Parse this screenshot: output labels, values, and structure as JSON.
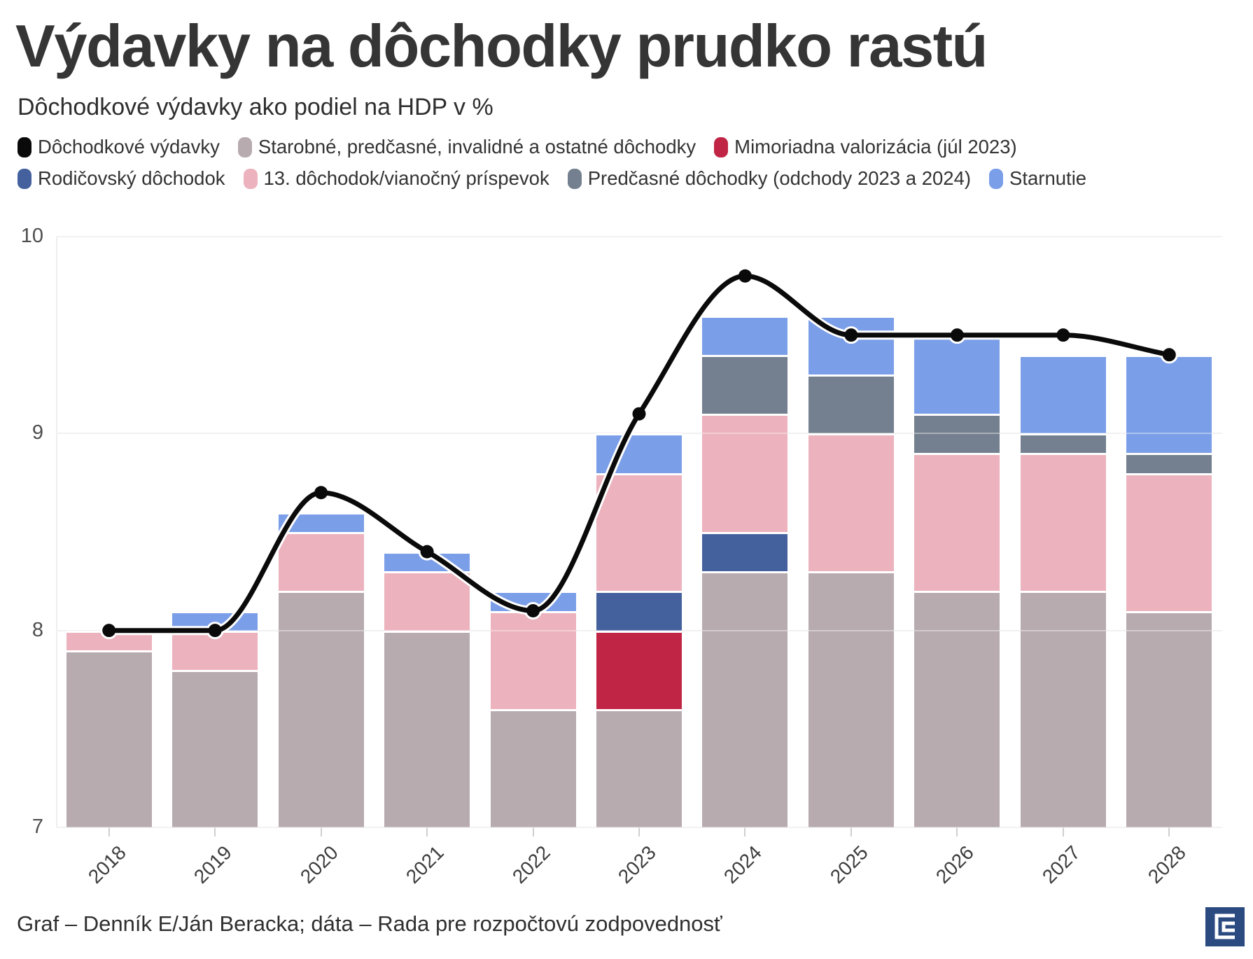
{
  "header": {
    "title": "Výdavky na dôchodky prudko rastú",
    "subtitle": "Dôchodkové výdavky ako podiel na HDP v %"
  },
  "legend": {
    "row1": [
      {
        "label": "Dôchodkové výdavky",
        "color": "#0a0a0a"
      },
      {
        "label": "Starobné, predčasné, invalidné a ostatné dôchodky",
        "color": "#b7abaf"
      },
      {
        "label": "Mimoriadna valorizácia (júl 2023)",
        "color": "#c02545"
      }
    ],
    "row2": [
      {
        "label": "Rodičovský dôchodok",
        "color": "#44619e"
      },
      {
        "label": "13. dôchodok/vianočný príspevok",
        "color": "#ecb2bd"
      },
      {
        "label": "Predčasné dôchodky (odchody 2023 a 2024)",
        "color": "#74808f"
      },
      {
        "label": "Starnutie",
        "color": "#7b9ee8"
      }
    ]
  },
  "chart_data": {
    "type": "bar",
    "subtype": "stacked-bars-with-line-overlay",
    "title": "Výdavky na dôchodky prudko rastú",
    "subtitle": "Dôchodkové výdavky ako podiel na HDP v %",
    "categories": [
      "2018",
      "2019",
      "2020",
      "2021",
      "2022",
      "2023",
      "2024",
      "2025",
      "2026",
      "2027",
      "2028"
    ],
    "stack_base": 7,
    "series": [
      {
        "name": "Starobné, predčasné, invalidné a ostatné dôchodky",
        "color": "#b7abaf",
        "values": [
          0.9,
          0.8,
          1.2,
          1.0,
          0.6,
          0.6,
          1.3,
          1.3,
          1.2,
          1.2,
          1.1
        ]
      },
      {
        "name": "Mimoriadna valorizácia (júl 2023)",
        "color": "#c02545",
        "values": [
          0,
          0,
          0,
          0,
          0,
          0.4,
          0,
          0,
          0,
          0,
          0
        ]
      },
      {
        "name": "Rodičovský dôchodok",
        "color": "#44619e",
        "values": [
          0,
          0,
          0,
          0,
          0,
          0.2,
          0.2,
          0,
          0,
          0,
          0
        ]
      },
      {
        "name": "13. dôchodok/vianočný príspevok",
        "color": "#ecb2bd",
        "values": [
          0.1,
          0.2,
          0.3,
          0.3,
          0.5,
          0.6,
          0.6,
          0.7,
          0.7,
          0.7,
          0.7
        ]
      },
      {
        "name": "Predčasné dôchodky (odchody 2023 a 2024)",
        "color": "#74808f",
        "values": [
          0,
          0,
          0,
          0,
          0,
          0,
          0.3,
          0.3,
          0.2,
          0.1,
          0.1
        ]
      },
      {
        "name": "Starnutie",
        "color": "#7b9ee8",
        "values": [
          0,
          0.1,
          0.1,
          0.1,
          0.1,
          0.2,
          0.2,
          0.3,
          0.4,
          0.4,
          0.5
        ]
      }
    ],
    "bar_totals": [
      8.0,
      8.1,
      8.6,
      8.4,
      8.2,
      9.0,
      9.6,
      9.6,
      9.5,
      9.4,
      9.4
    ],
    "line_series": {
      "name": "Dôchodkové výdavky",
      "color": "#0a0a0a",
      "values": [
        8.0,
        8.0,
        8.7,
        8.4,
        8.1,
        9.1,
        9.8,
        9.5,
        9.5,
        9.5,
        9.4
      ]
    },
    "ylim": [
      7,
      10
    ],
    "yticks": [
      7,
      8,
      9,
      10
    ],
    "grid": "horizontal",
    "legend_position": "top",
    "xlabel": "",
    "ylabel": "",
    "x_tick_rotation": -45
  },
  "footer": {
    "credit": "Graf – Denník E/Ján Beracka; dáta – Rada pre rozpočtovú zodpovednosť",
    "logo": "dennik-e-logo",
    "logo_color": "#2a4a80"
  }
}
